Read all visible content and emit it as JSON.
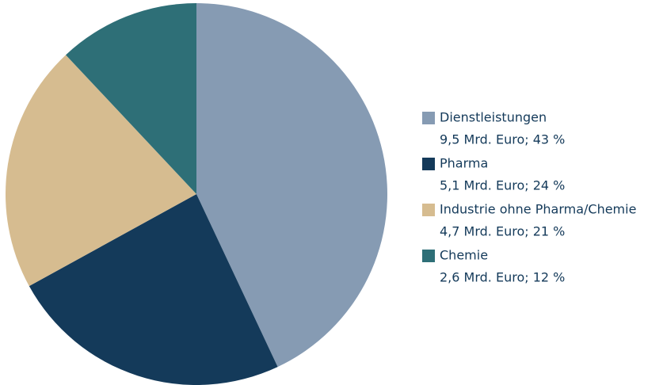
{
  "chart_data": {
    "type": "pie",
    "categories": [
      "Dienstleistungen",
      "Pharma",
      "Industrie ohne Pharma/Chemie",
      "Chemie"
    ],
    "values": [
      43,
      24,
      21,
      12
    ],
    "value_labels": [
      "9,5 Mrd. Euro; 43 %",
      "5,1 Mrd. Euro; 24 %",
      "4,7 Mrd. Euro; 21 %",
      "2,6 Mrd. Euro; 12 %"
    ],
    "colors": [
      "#869bb3",
      "#143a5a",
      "#d6bc90",
      "#2e6f77"
    ],
    "legend": "right"
  }
}
